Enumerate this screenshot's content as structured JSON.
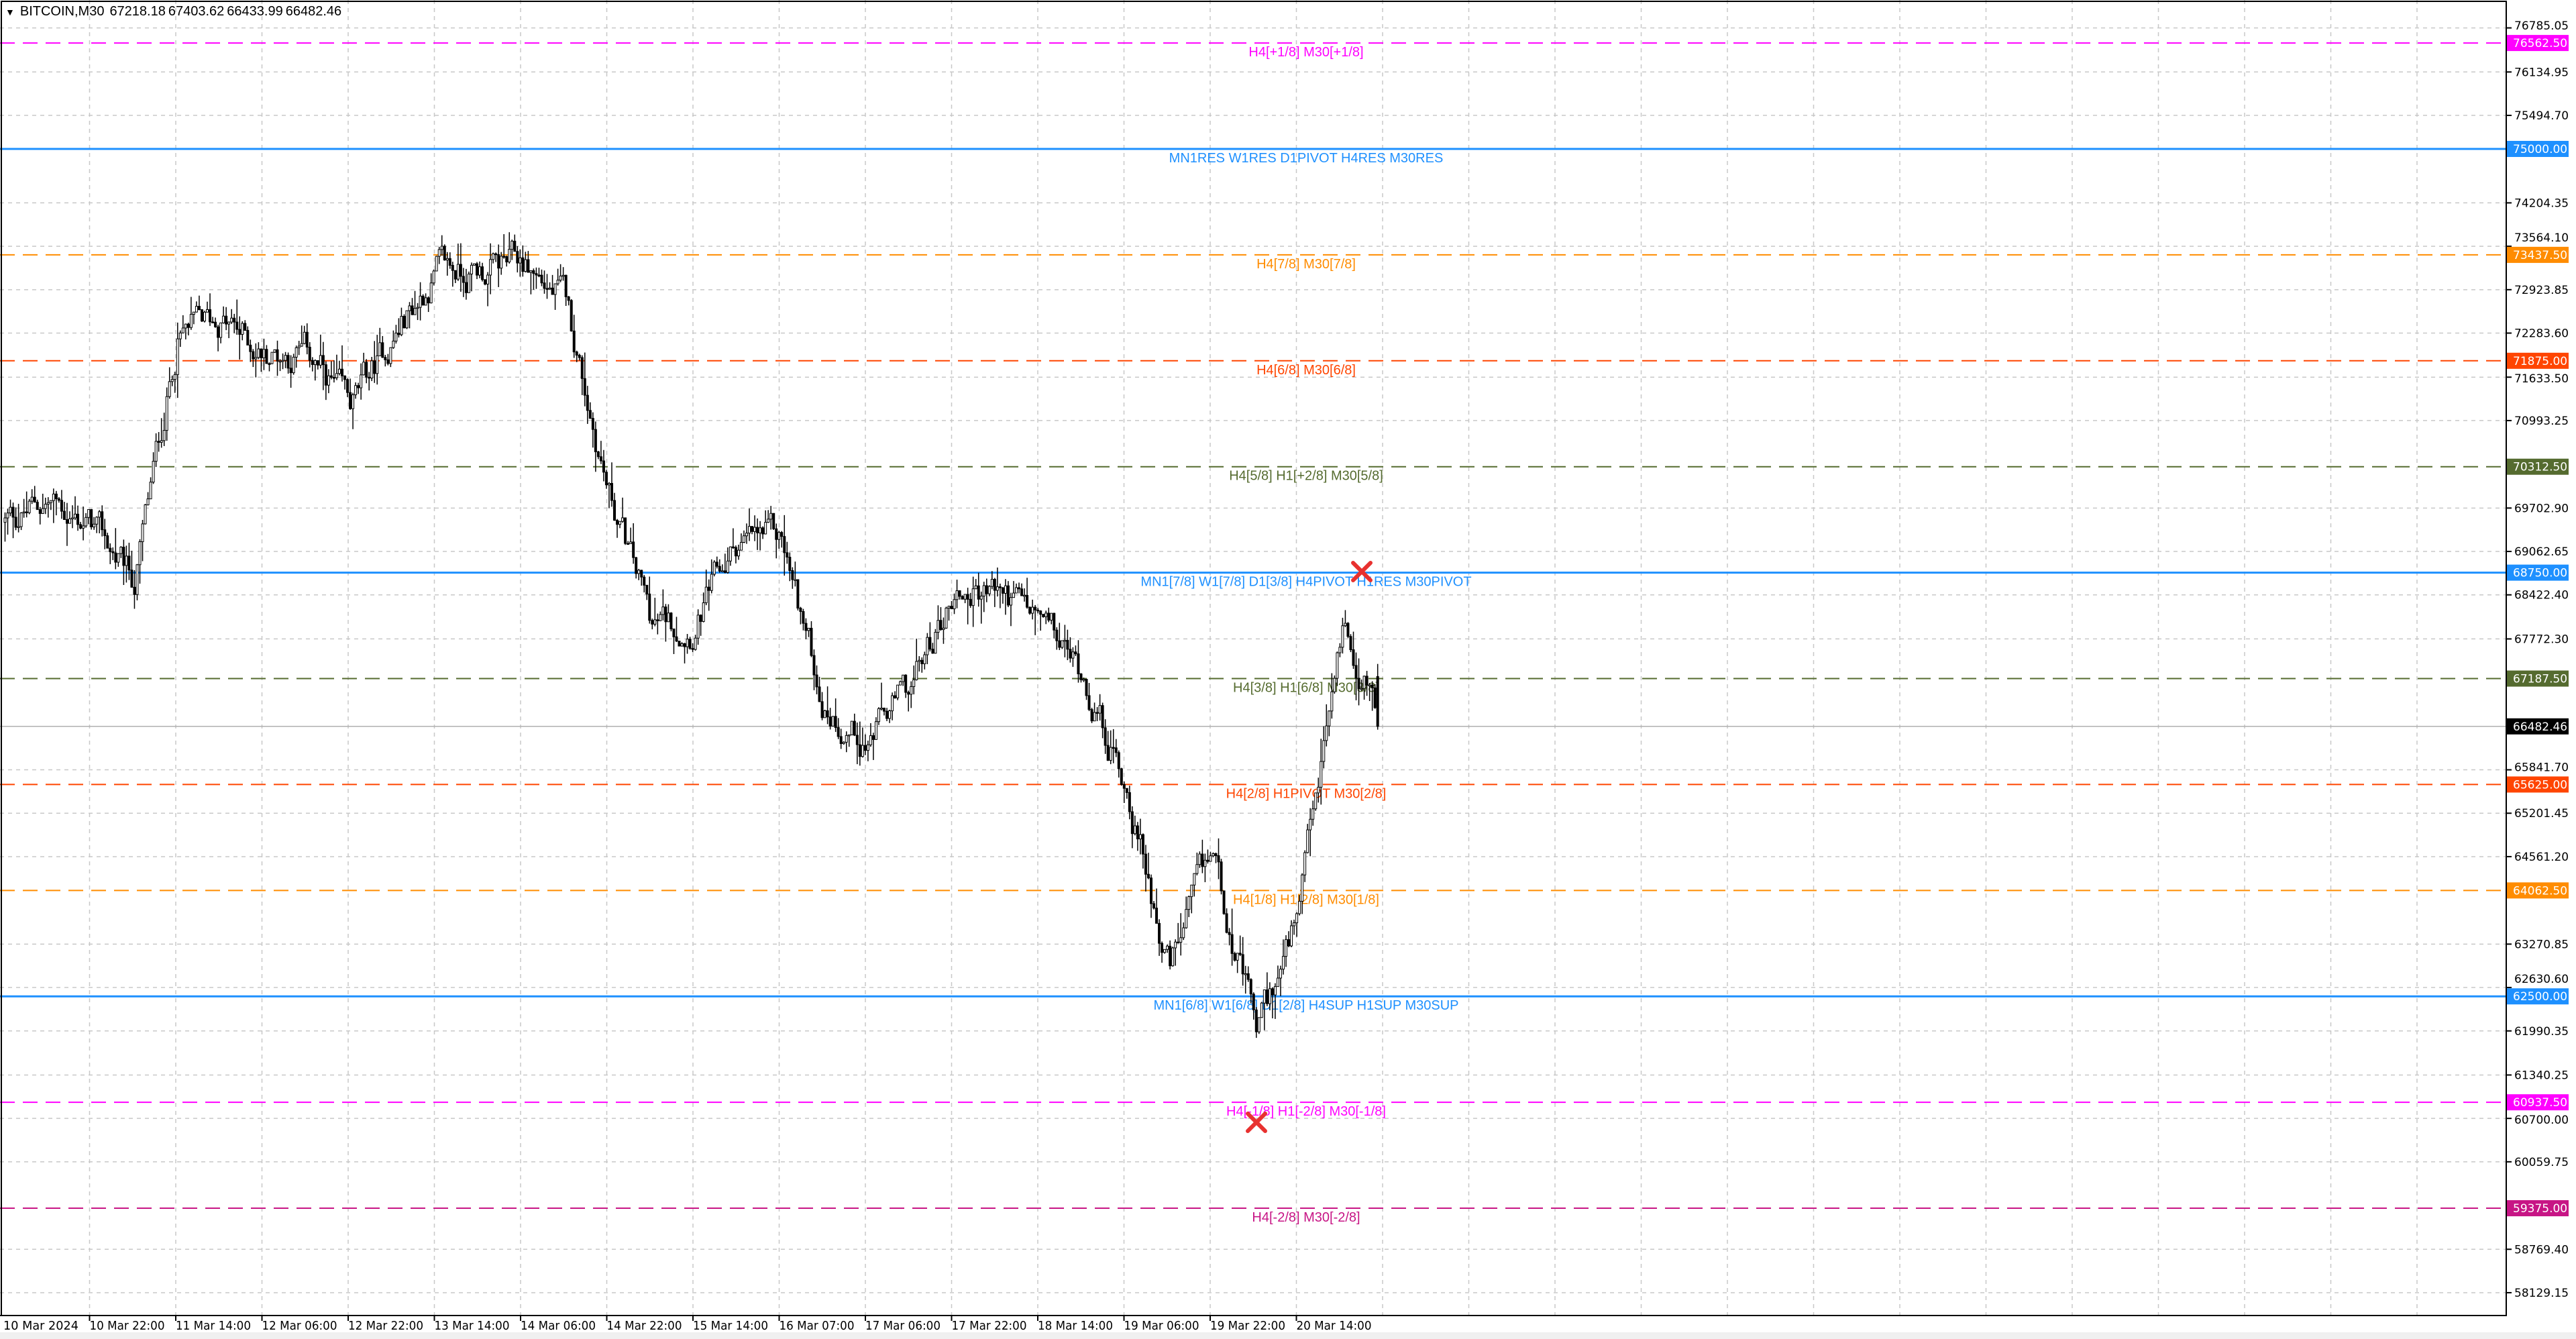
{
  "header": {
    "symbol": "BITCOIN,M30",
    "open": "67218.18",
    "high": "67403.62",
    "low": "66433.99",
    "close": "66482.46",
    "menu_icon": "triangle-down-icon"
  },
  "chart_data": {
    "type": "candlestick",
    "symbol": "BITCOIN",
    "timeframe": "M30",
    "start_time": "10 Mar 2024 06:00",
    "path_interval_hours": 8,
    "approx_closes_8h": [
      69492,
      69807,
      69443,
      68595,
      72230,
      72472,
      71988,
      71988,
      71140,
      72230,
      73199,
      73199,
      73320,
      72714,
      69928,
      67990,
      67990,
      69200,
      69200,
      66777,
      66293,
      67020,
      68474,
      68474,
      67990,
      67263,
      65567,
      62902,
      64598,
      61932,
      63628,
      67990,
      66536
    ],
    "last_bar": {
      "open": 67218.18,
      "high": 67403.62,
      "low": 66433.99,
      "close": 66482.46
    },
    "ylim": [
      57900,
      77100
    ],
    "grid": true,
    "y_ticks": [
      "76785.05",
      "76134.95",
      "75494.70",
      "74204.35",
      "73564.10",
      "72923.85",
      "72283.60",
      "71633.50",
      "70993.25",
      "69702.90",
      "69062.65",
      "68422.40",
      "67772.30",
      "65841.70",
      "65201.45",
      "64561.20",
      "63270.85",
      "62630.60",
      "61990.35",
      "61340.25",
      "60700.00",
      "60059.75",
      "58769.40",
      "58129.15"
    ],
    "x_ticks": [
      "10 Mar 2024",
      "10 Mar 22:00",
      "11 Mar 14:00",
      "12 Mar 06:00",
      "12 Mar 22:00",
      "13 Mar 14:00",
      "14 Mar 06:00",
      "14 Mar 22:00",
      "15 Mar 14:00",
      "16 Mar 07:00",
      "17 Mar 06:00",
      "17 Mar 22:00",
      "18 Mar 14:00",
      "19 Mar 06:00",
      "19 Mar 22:00",
      "20 Mar 14:00"
    ],
    "current_price": {
      "value": 66482.46,
      "label": "66482.46",
      "color": "#000000"
    },
    "levels": [
      {
        "price": 76562.5,
        "label": "76562.50",
        "text": "H4[+1/8] M30[+1/8]",
        "color": "#ff00ff",
        "style": "dashed"
      },
      {
        "price": 75000.0,
        "label": "75000.00",
        "text": "MN1RES W1RES D1PIVOT H4RES M30RES",
        "color": "#1e90ff",
        "style": "solid"
      },
      {
        "price": 73437.5,
        "label": "73437.50",
        "text": "H4[7/8] M30[7/8]",
        "color": "#ff8c00",
        "style": "dashed"
      },
      {
        "price": 71875.0,
        "label": "71875.00",
        "text": "H4[6/8] M30[6/8]",
        "color": "#ff4500",
        "style": "dashed"
      },
      {
        "price": 70312.5,
        "label": "70312.50",
        "text": "H4[5/8] H1[+2/8] M30[5/8]",
        "color": "#556b2f",
        "style": "dashed"
      },
      {
        "price": 68750.0,
        "label": "68750.00",
        "text": "MN1[7/8] W1[7/8] D1[3/8] H4PIVOT H1RES M30PIVOT",
        "color": "#1e90ff",
        "style": "solid"
      },
      {
        "price": 67187.5,
        "label": "67187.50",
        "text": "H4[3/8] H1[6/8] M30[3/8]",
        "color": "#556b2f",
        "style": "dashed"
      },
      {
        "price": 65625.0,
        "label": "65625.00",
        "text": "H4[2/8] H1PIVOT M30[2/8]",
        "color": "#ff4500",
        "style": "dashed"
      },
      {
        "price": 64062.5,
        "label": "64062.50",
        "text": "H4[1/8] H1[2/8] M30[1/8]",
        "color": "#ff8c00",
        "style": "dashed"
      },
      {
        "price": 62500.0,
        "label": "62500.00",
        "text": "MN1[6/8] W1[6/8] D1[2/8] H4SUP H1SUP M30SUP",
        "color": "#1e90ff",
        "style": "solid"
      },
      {
        "price": 60937.5,
        "label": "60937.50",
        "text": "H4[-1/8] H1[-2/8] M30[-1/8]",
        "color": "#ff00ff",
        "style": "dashed"
      },
      {
        "price": 59375.0,
        "label": "59375.00",
        "text": "H4[-2/8] M30[-2/8]",
        "color": "#c71585",
        "style": "dashed"
      }
    ],
    "markers": [
      {
        "type": "x-mark",
        "time": "20 Mar 16:00",
        "price": 68750,
        "color": "#e8312f"
      },
      {
        "type": "x-mark",
        "time": "19 Mar 23:00",
        "price": 60700,
        "color": "#e8312f"
      }
    ]
  }
}
